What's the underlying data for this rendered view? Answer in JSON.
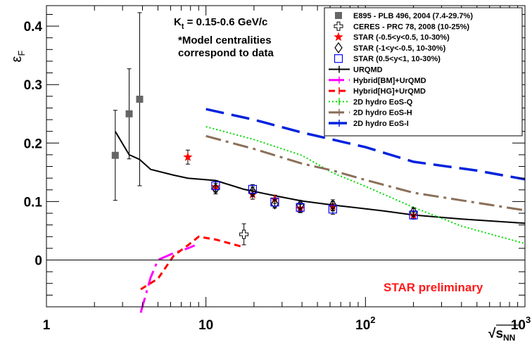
{
  "chart_data": {
    "type": "scatter",
    "x_scale": "log",
    "xlim": [
      1,
      1000
    ],
    "ylim": [
      -0.08,
      0.435
    ],
    "grid": false,
    "legend_position": "top-right",
    "x_ticks": [
      {
        "value": 1,
        "label": "1"
      },
      {
        "value": 10,
        "label": "10"
      },
      {
        "value": 100,
        "label": "10",
        "exp": "2"
      },
      {
        "value": 1000,
        "label": "10",
        "exp": "3"
      }
    ],
    "y_ticks": [
      {
        "value": 0,
        "label": "0"
      },
      {
        "value": 0.1,
        "label": "0.1"
      },
      {
        "value": 0.2,
        "label": "0.2"
      },
      {
        "value": 0.3,
        "label": "0.3"
      },
      {
        "value": 0.4,
        "label": "0.4"
      }
    ],
    "ylabel": {
      "main": "ε",
      "sub": "F"
    },
    "xlabel": {
      "main": "s",
      "sub": "NN",
      "prefix": "√"
    },
    "annotations": {
      "kt": {
        "main": "K",
        "sub": "t",
        "rest": " = 0.15-0.6 GeV/c"
      },
      "note_line1": "*Model centralities",
      "note_line2": "correspond to data",
      "preliminary": "STAR preliminary"
    },
    "series": [
      {
        "name": "E895 - PLB 496, 2004 (7.4-29.7%)",
        "marker": "filled-square",
        "color": "#666666",
        "points": [
          {
            "x": 2.7,
            "y": 0.179,
            "err": 0.077
          },
          {
            "x": 3.3,
            "y": 0.25,
            "err": 0.077
          },
          {
            "x": 3.84,
            "y": 0.275,
            "err": 0.148
          }
        ]
      },
      {
        "name": "CERES - PRC 78, 2008 (10-25%)",
        "marker": "open-cross",
        "color": "#000000",
        "points": [
          {
            "x": 17.3,
            "y": 0.044,
            "err": 0.018
          }
        ]
      },
      {
        "name": "STAR (-0.5<y<0.5, 10-30%)",
        "marker": "star",
        "color": "#ff0000",
        "points": [
          {
            "x": 7.7,
            "y": 0.176,
            "err": 0.012
          },
          {
            "x": 11.5,
            "y": 0.125,
            "err": 0.009
          },
          {
            "x": 19.6,
            "y": 0.112,
            "err": 0.008
          },
          {
            "x": 27,
            "y": 0.104,
            "err": 0.007
          },
          {
            "x": 39,
            "y": 0.088,
            "err": 0.007
          },
          {
            "x": 62.4,
            "y": 0.092,
            "err": 0.008
          },
          {
            "x": 200,
            "y": 0.076,
            "err": 0.006
          }
        ]
      },
      {
        "name": "STAR (-1<y<-0.5, 10-30%)",
        "marker": "open-diamond",
        "color": "#000000",
        "points": [
          {
            "x": 11.5,
            "y": 0.122,
            "err": 0.009
          },
          {
            "x": 19.6,
            "y": 0.117,
            "err": 0.008
          },
          {
            "x": 27,
            "y": 0.096,
            "err": 0.007
          },
          {
            "x": 39,
            "y": 0.094,
            "err": 0.008
          },
          {
            "x": 62.4,
            "y": 0.094,
            "err": 0.009
          },
          {
            "x": 200,
            "y": 0.082,
            "err": 0.007
          }
        ]
      },
      {
        "name": "STAR (0.5<y<1, 10-30%)",
        "marker": "open-square",
        "color": "#0000ff",
        "points": [
          {
            "x": 11.5,
            "y": 0.127,
            "err": 0.009
          },
          {
            "x": 19.6,
            "y": 0.121,
            "err": 0.008
          },
          {
            "x": 27,
            "y": 0.099,
            "err": 0.007
          },
          {
            "x": 39,
            "y": 0.09,
            "err": 0.008
          },
          {
            "x": 62.4,
            "y": 0.087,
            "err": 0.009
          },
          {
            "x": 200,
            "y": 0.077,
            "err": 0.007
          }
        ]
      },
      {
        "name": "URQMD",
        "line": "solid",
        "color": "#000000",
        "width": 2,
        "points": [
          {
            "x": 2.7,
            "y": 0.22
          },
          {
            "x": 3.3,
            "y": 0.18
          },
          {
            "x": 3.84,
            "y": 0.172
          },
          {
            "x": 4.5,
            "y": 0.155
          },
          {
            "x": 6.3,
            "y": 0.145
          },
          {
            "x": 7.7,
            "y": 0.14
          },
          {
            "x": 11.5,
            "y": 0.136
          },
          {
            "x": 17.3,
            "y": 0.121
          },
          {
            "x": 27,
            "y": 0.11
          },
          {
            "x": 40,
            "y": 0.101
          },
          {
            "x": 62.4,
            "y": 0.094
          },
          {
            "x": 130,
            "y": 0.084
          },
          {
            "x": 200,
            "y": 0.077
          },
          {
            "x": 400,
            "y": 0.07
          },
          {
            "x": 1000,
            "y": 0.063
          }
        ]
      },
      {
        "name": "Hybrid[BM]+UrQMD",
        "line": "dash-dot",
        "color": "#ff00ff",
        "width": 3,
        "points": [
          {
            "x": 3.9,
            "y": -0.09
          },
          {
            "x": 4.5,
            "y": -0.03
          },
          {
            "x": 5,
            "y": 0.0
          },
          {
            "x": 6.3,
            "y": 0.012
          },
          {
            "x": 7.7,
            "y": 0.02
          },
          {
            "x": 8.5,
            "y": 0.025
          }
        ]
      },
      {
        "name": "Hybrid[HG]+UrQMD",
        "line": "dash",
        "color": "#ff0000",
        "width": 3,
        "points": [
          {
            "x": 3.9,
            "y": -0.05
          },
          {
            "x": 5,
            "y": -0.032
          },
          {
            "x": 6.3,
            "y": 0.008
          },
          {
            "x": 7.7,
            "y": 0.025
          },
          {
            "x": 9,
            "y": 0.04
          },
          {
            "x": 11.5,
            "y": 0.035
          },
          {
            "x": 17.3,
            "y": 0.022
          }
        ]
      },
      {
        "name": "2D hydro EoS-Q",
        "line": "dotted",
        "color": "#00dd00",
        "width": 2,
        "points": [
          {
            "x": 10,
            "y": 0.228
          },
          {
            "x": 20,
            "y": 0.206
          },
          {
            "x": 40,
            "y": 0.179
          },
          {
            "x": 62.4,
            "y": 0.149
          },
          {
            "x": 100,
            "y": 0.126
          },
          {
            "x": 200,
            "y": 0.09
          },
          {
            "x": 400,
            "y": 0.058
          },
          {
            "x": 1000,
            "y": 0.028
          }
        ]
      },
      {
        "name": "2D hydro EoS-H",
        "line": "dash-dot",
        "color": "#8b6f58",
        "width": 3,
        "points": [
          {
            "x": 10,
            "y": 0.212
          },
          {
            "x": 20,
            "y": 0.19
          },
          {
            "x": 40,
            "y": 0.165
          },
          {
            "x": 62.4,
            "y": 0.153
          },
          {
            "x": 100,
            "y": 0.137
          },
          {
            "x": 200,
            "y": 0.115
          },
          {
            "x": 400,
            "y": 0.102
          },
          {
            "x": 1000,
            "y": 0.085
          }
        ]
      },
      {
        "name": "2D hydro EoS-I",
        "line": "long-dash",
        "color": "#0022dd",
        "width": 3.5,
        "points": [
          {
            "x": 10,
            "y": 0.258
          },
          {
            "x": 20,
            "y": 0.24
          },
          {
            "x": 40,
            "y": 0.218
          },
          {
            "x": 100,
            "y": 0.193
          },
          {
            "x": 200,
            "y": 0.168
          },
          {
            "x": 500,
            "y": 0.153
          },
          {
            "x": 1000,
            "y": 0.138
          }
        ]
      }
    ]
  }
}
